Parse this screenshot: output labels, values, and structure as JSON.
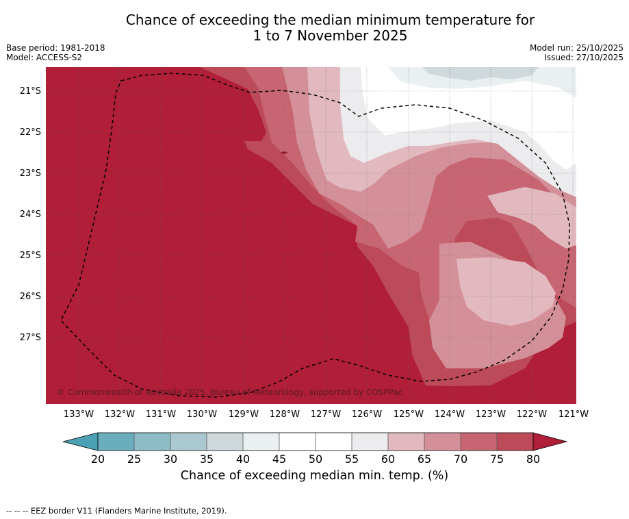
{
  "title_line1": "Chance of exceeding the median minimum temperature for",
  "title_line2": "1 to 7 November 2025",
  "base_period": "Base period: 1981-2018",
  "model": "Model: ACCESS-S2",
  "model_run": "Model run: 25/10/2025",
  "issued": "Issued: 27/10/2025",
  "copyright": "© Commonwealth of Australia 2025, Bureau of Meteorology, supported by COSPPac",
  "footnote": "-- -- -- EEZ border V11 (Flanders Marine Institute, 2019).",
  "colorbar": {
    "label": "Chance of exceeding median min. temp. (%)",
    "ticks": [
      "20",
      "25",
      "30",
      "35",
      "40",
      "45",
      "50",
      "55",
      "60",
      "65",
      "70",
      "75",
      "80"
    ],
    "colors": [
      "#6aaebd",
      "#8ebcc7",
      "#a9c8cf",
      "#cfd9dc",
      "#eaf0f2",
      "#ffffff",
      "#ffffff",
      "#ecebed",
      "#e1b9bf",
      "#d49099",
      "#c76572",
      "#bd4a59"
    ],
    "under_color": "#4aa1b3",
    "over_color": "#b01e38"
  },
  "map": {
    "lat_labels": [
      "21°S",
      "22°S",
      "23°S",
      "24°S",
      "25°S",
      "26°S",
      "27°S"
    ],
    "lon_labels": [
      "133°W",
      "132°W",
      "131°W",
      "130°W",
      "129°W",
      "128°W",
      "127°W",
      "126°W",
      "125°W",
      "124°W",
      "123°W",
      "122°W",
      "121°W"
    ],
    "level_colors": {
      "p80plus": "#b01e38",
      "p75": "#bd4a59",
      "p70": "#c76572",
      "p65": "#d49099",
      "p60": "#e1b9bf",
      "p55": "#ecebed",
      "p50": "#ffffff",
      "p40": "#eaf0f2",
      "p35": "#cfd9dc"
    }
  }
}
